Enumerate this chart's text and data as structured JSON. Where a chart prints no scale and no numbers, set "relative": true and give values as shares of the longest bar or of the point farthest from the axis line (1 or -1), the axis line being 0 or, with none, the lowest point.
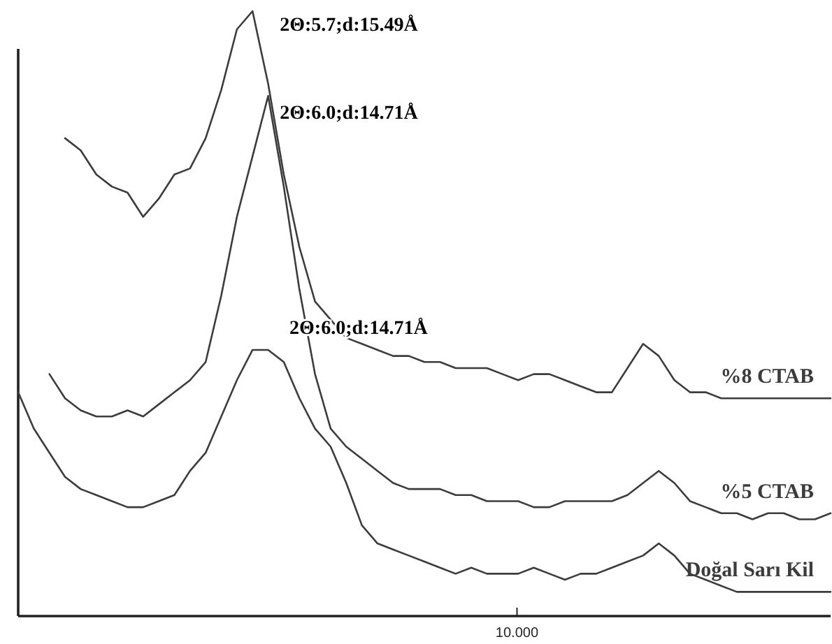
{
  "chart_data": {
    "type": "line",
    "relative": true,
    "marker": "none",
    "line_style": "solid",
    "categories": [
      null,
      null,
      null,
      null,
      null,
      null,
      null,
      null,
      null,
      null,
      null,
      null,
      null,
      null,
      null,
      null,
      null,
      null,
      null,
      null,
      null,
      null,
      null,
      null,
      null,
      null,
      null,
      null,
      null,
      null,
      null,
      null,
      null,
      null,
      null,
      null,
      null,
      null,
      null,
      null,
      null,
      null,
      null,
      null,
      null,
      null,
      null,
      null,
      null,
      null,
      null,
      null,
      null
    ],
    "series": [
      {
        "name": "%8 CTAB",
        "color": "#3c3c3c",
        "values": [
          null,
          null,
          null,
          0.79,
          0.77,
          0.73,
          0.71,
          0.7,
          0.66,
          0.69,
          0.73,
          0.74,
          0.79,
          0.87,
          0.97,
          1.0,
          0.88,
          0.73,
          0.61,
          0.52,
          0.49,
          0.46,
          0.45,
          0.44,
          0.43,
          0.43,
          0.42,
          0.42,
          0.41,
          0.41,
          0.41,
          0.4,
          0.39,
          0.4,
          0.4,
          0.39,
          0.38,
          0.37,
          0.37,
          0.41,
          0.45,
          0.43,
          0.39,
          0.37,
          0.37,
          0.36,
          0.36,
          0.36,
          0.36,
          0.36,
          0.36,
          0.36,
          0.36
        ]
      },
      {
        "name": "%5 CTAB",
        "color": "#3c3c3c",
        "values": [
          null,
          null,
          0.4,
          0.36,
          0.34,
          0.33,
          0.33,
          0.34,
          0.33,
          0.35,
          0.37,
          0.39,
          0.42,
          0.53,
          0.66,
          0.76,
          0.86,
          0.71,
          0.54,
          0.4,
          0.31,
          0.28,
          0.26,
          0.24,
          0.22,
          0.21,
          0.21,
          0.21,
          0.2,
          0.2,
          0.19,
          0.19,
          0.19,
          0.18,
          0.18,
          0.19,
          0.19,
          0.19,
          0.19,
          0.2,
          0.22,
          0.24,
          0.22,
          0.19,
          0.18,
          0.17,
          0.17,
          0.16,
          0.17,
          0.17,
          0.16,
          0.16,
          0.17
        ]
      },
      {
        "name": "Doğal Sarı Kil",
        "color": "#3c3c3c",
        "values": [
          0.37,
          0.31,
          0.27,
          0.23,
          0.21,
          0.2,
          0.19,
          0.18,
          0.18,
          0.19,
          0.2,
          0.24,
          0.27,
          0.33,
          0.39,
          0.44,
          0.44,
          0.42,
          0.36,
          0.31,
          0.28,
          0.22,
          0.15,
          0.12,
          0.11,
          0.1,
          0.09,
          0.08,
          0.07,
          0.08,
          0.07,
          0.07,
          0.07,
          0.08,
          0.07,
          0.06,
          0.07,
          0.07,
          0.08,
          0.09,
          0.1,
          0.12,
          0.1,
          0.07,
          0.06,
          0.05,
          0.04,
          0.04,
          0.04,
          0.04,
          0.04,
          0.04,
          0.04
        ]
      }
    ],
    "annotations": [
      "2Θ:5.7;d:15.49Å",
      "2Θ:6.0;d:14.71Å",
      "2Θ:6.0;d:14.71Å",
      "10.000"
    ]
  }
}
